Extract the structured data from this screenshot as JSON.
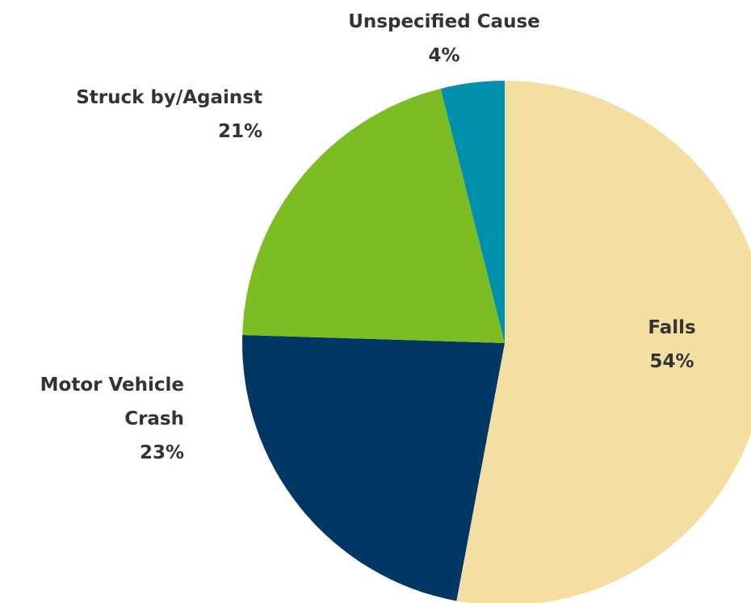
{
  "chart_data": {
    "type": "pie",
    "categories": [
      "Falls",
      "Motor Vehicle Crash",
      "Struck by/Against",
      "Unspecified Cause"
    ],
    "values": [
      54,
      23,
      21,
      4
    ],
    "value_labels": [
      "54%",
      "23%",
      "21%",
      "4%"
    ],
    "colors": [
      "#f4dfa2",
      "#003764",
      "#7bbd23",
      "#0090ab"
    ],
    "start_angle": 0,
    "direction": "clockwise"
  }
}
